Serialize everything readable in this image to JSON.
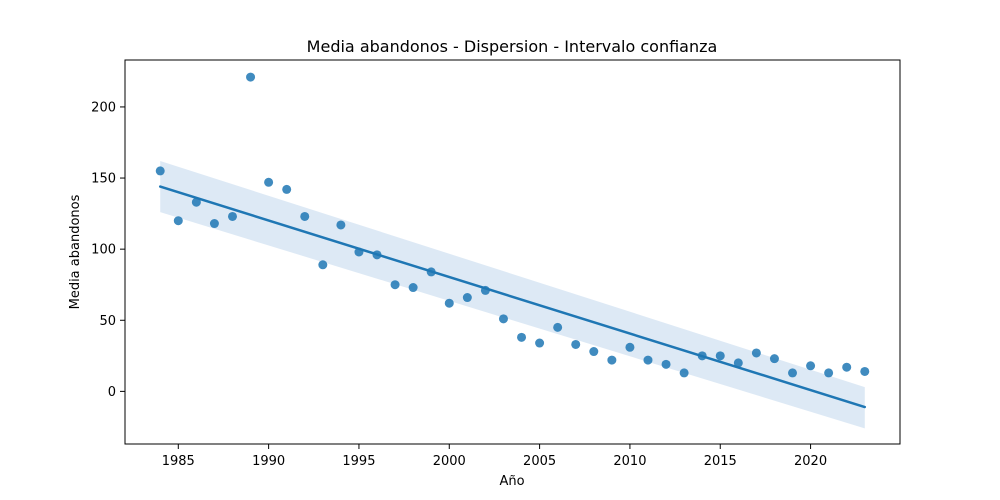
{
  "chart_data": {
    "type": "scatter",
    "title": "Media abandonos - Dispersion - Intervalo confianza",
    "xlabel": "Año",
    "ylabel": "Media abandonos",
    "xlim": [
      1982.05,
      2024.95
    ],
    "ylim": [
      -37,
      233
    ],
    "xticks": [
      1985,
      1990,
      1995,
      2000,
      2005,
      2010,
      2015,
      2020
    ],
    "yticks": [
      0,
      50,
      100,
      150,
      200
    ],
    "grid": false,
    "legend": false,
    "colors": {
      "points": "#1f77b4",
      "line": "#1f77b4",
      "band": "#c6dbef"
    },
    "series": [
      {
        "x": [
          1984,
          1985,
          1986,
          1987,
          1988,
          1989,
          1990,
          1991,
          1992,
          1993,
          1994,
          1995,
          1996,
          1997,
          1998,
          1999,
          2000,
          2001,
          2002,
          2003,
          2004,
          2005,
          2006,
          2007,
          2008,
          2009,
          2010,
          2011,
          2012,
          2013,
          2014,
          2015,
          2016,
          2017,
          2018,
          2019,
          2020,
          2021,
          2022,
          2023
        ],
        "y": [
          155,
          120,
          133,
          118,
          123,
          221,
          147,
          142,
          123,
          89,
          117,
          98,
          96,
          75,
          73,
          84,
          62,
          66,
          71,
          51,
          38,
          34,
          45,
          33,
          28,
          22,
          31,
          22,
          19,
          13,
          25,
          25,
          20,
          27,
          23,
          13,
          18,
          13,
          17,
          14
        ]
      }
    ],
    "regression": {
      "x": [
        1984,
        2023
      ],
      "y": [
        144,
        -11
      ],
      "ci_upper": [
        162,
        3
      ],
      "ci_lower": [
        126,
        -26
      ]
    }
  }
}
